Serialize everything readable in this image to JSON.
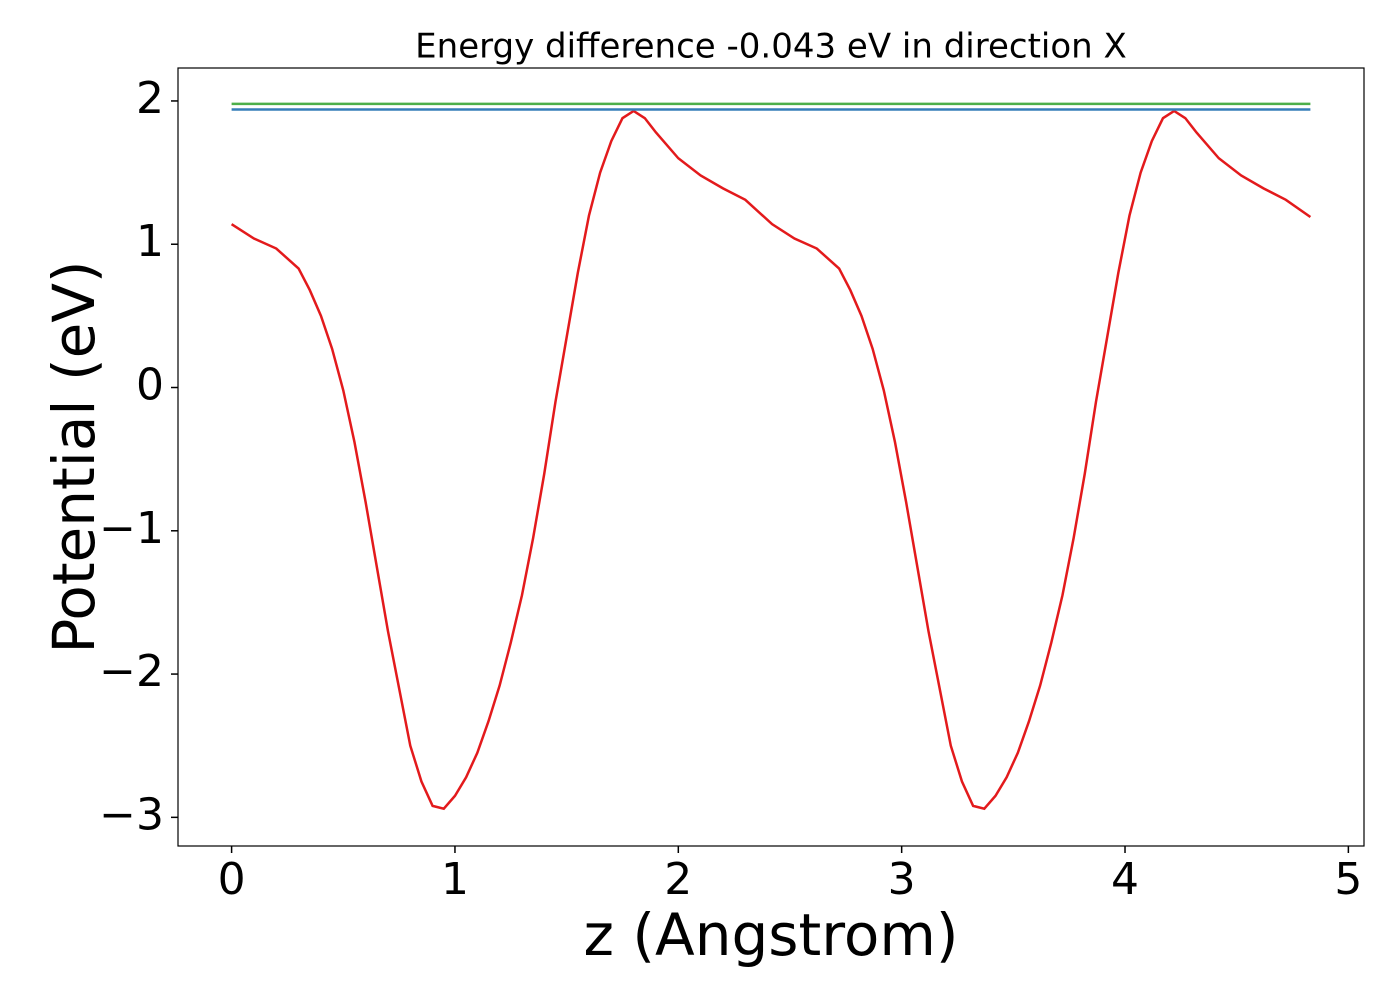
{
  "chart_data": {
    "type": "line",
    "title": "Energy difference -0.043 eV in direction X",
    "x_label": "z (Angstrom)",
    "y_label": "Potential (eV)",
    "xlim": [
      -0.24,
      5.07
    ],
    "ylim": [
      -3.2,
      2.23
    ],
    "xticks": [
      0,
      1,
      2,
      3,
      4,
      5
    ],
    "yticks": [
      {
        "value": -3,
        "label": "−3"
      },
      {
        "value": -2,
        "label": "−2"
      },
      {
        "value": -1,
        "label": "−1"
      },
      0,
      1,
      2
    ],
    "grid": false,
    "series": [
      {
        "color": "#e31a1c",
        "x": [
          0,
          0.1,
          0.2,
          0.3,
          0.35,
          0.4,
          0.45,
          0.5,
          0.55,
          0.6,
          0.65,
          0.7,
          0.75,
          0.8,
          0.85,
          0.9,
          0.95,
          1.0,
          1.05,
          1.1,
          1.15,
          1.2,
          1.25,
          1.3,
          1.35,
          1.4,
          1.45,
          1.5,
          1.55,
          1.6,
          1.65,
          1.7,
          1.75,
          1.8,
          1.85,
          1.9,
          2.0,
          2.1,
          2.2,
          2.3,
          2.42,
          2.52,
          2.62,
          2.72,
          2.77,
          2.82,
          2.87,
          2.92,
          2.97,
          3.02,
          3.07,
          3.12,
          3.17,
          3.22,
          3.27,
          3.32,
          3.37,
          3.42,
          3.47,
          3.52,
          3.57,
          3.62,
          3.67,
          3.72,
          3.77,
          3.82,
          3.87,
          3.92,
          3.97,
          4.02,
          4.07,
          4.12,
          4.17,
          4.22,
          4.27,
          4.32,
          4.42,
          4.52,
          4.62,
          4.72,
          4.83
        ],
        "values": [
          1.14,
          1.04,
          0.97,
          0.83,
          0.68,
          0.5,
          0.27,
          -0.02,
          -0.38,
          -0.8,
          -1.25,
          -1.7,
          -2.1,
          -2.5,
          -2.75,
          -2.92,
          -2.94,
          -2.85,
          -2.72,
          -2.55,
          -2.33,
          -2.08,
          -1.78,
          -1.45,
          -1.05,
          -0.6,
          -0.1,
          0.35,
          0.8,
          1.2,
          1.5,
          1.72,
          1.88,
          1.93,
          1.88,
          1.78,
          1.6,
          1.48,
          1.39,
          1.31,
          1.14,
          1.04,
          0.97,
          0.83,
          0.68,
          0.5,
          0.27,
          -0.02,
          -0.38,
          -0.8,
          -1.25,
          -1.7,
          -2.1,
          -2.5,
          -2.75,
          -2.92,
          -2.94,
          -2.85,
          -2.72,
          -2.55,
          -2.33,
          -2.08,
          -1.78,
          -1.45,
          -1.05,
          -0.6,
          -0.1,
          0.35,
          0.8,
          1.2,
          1.5,
          1.72,
          1.88,
          1.93,
          1.88,
          1.78,
          1.6,
          1.48,
          1.39,
          1.31,
          1.19
        ]
      },
      {
        "color": "#4daf4a",
        "x": [
          0,
          4.83
        ],
        "values": [
          1.98,
          1.98
        ]
      },
      {
        "color": "#377eb8",
        "x": [
          0,
          4.83
        ],
        "values": [
          1.94,
          1.94
        ]
      }
    ]
  }
}
